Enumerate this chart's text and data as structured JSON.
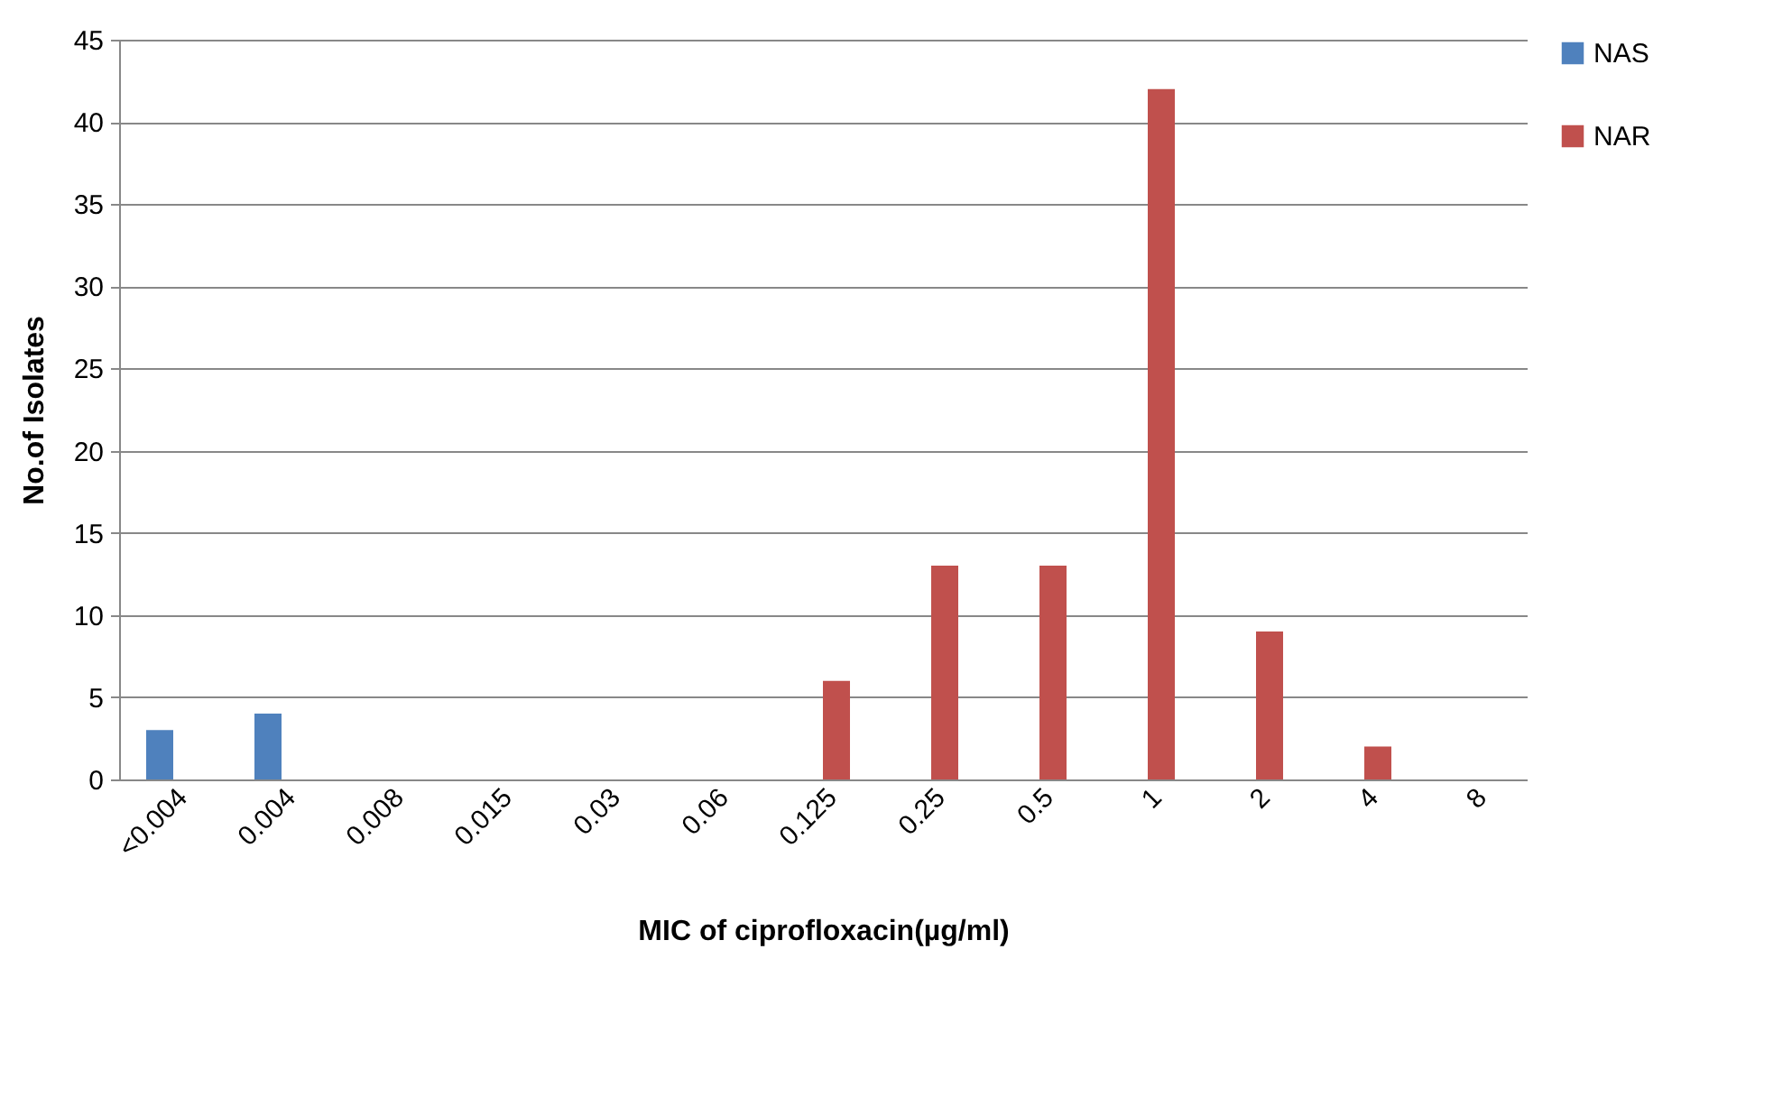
{
  "chart_data": {
    "type": "bar",
    "xlabel": "MIC of ciprofloxacin(µg/ml)",
    "ylabel": "No.of Isolates",
    "categories": [
      "<0.004",
      "0.004",
      "0.008",
      "0.015",
      "0.03",
      "0.06",
      "0.125",
      "0.25",
      "0.5",
      "1",
      "2",
      "4",
      "8"
    ],
    "series": [
      {
        "name": "NAS",
        "color": "#4f81bd",
        "values": [
          3,
          4,
          0,
          0,
          0,
          0,
          0,
          0,
          0,
          0,
          0,
          0,
          0
        ]
      },
      {
        "name": "NAR",
        "color": "#c0504d",
        "values": [
          0,
          0,
          0,
          0,
          0,
          0,
          6,
          13,
          13,
          42,
          9,
          2,
          0
        ]
      }
    ],
    "ylim": [
      0,
      45
    ],
    "yticks": [
      0,
      5,
      10,
      15,
      20,
      25,
      30,
      35,
      40,
      45
    ],
    "grid": "y",
    "legend": "right"
  }
}
